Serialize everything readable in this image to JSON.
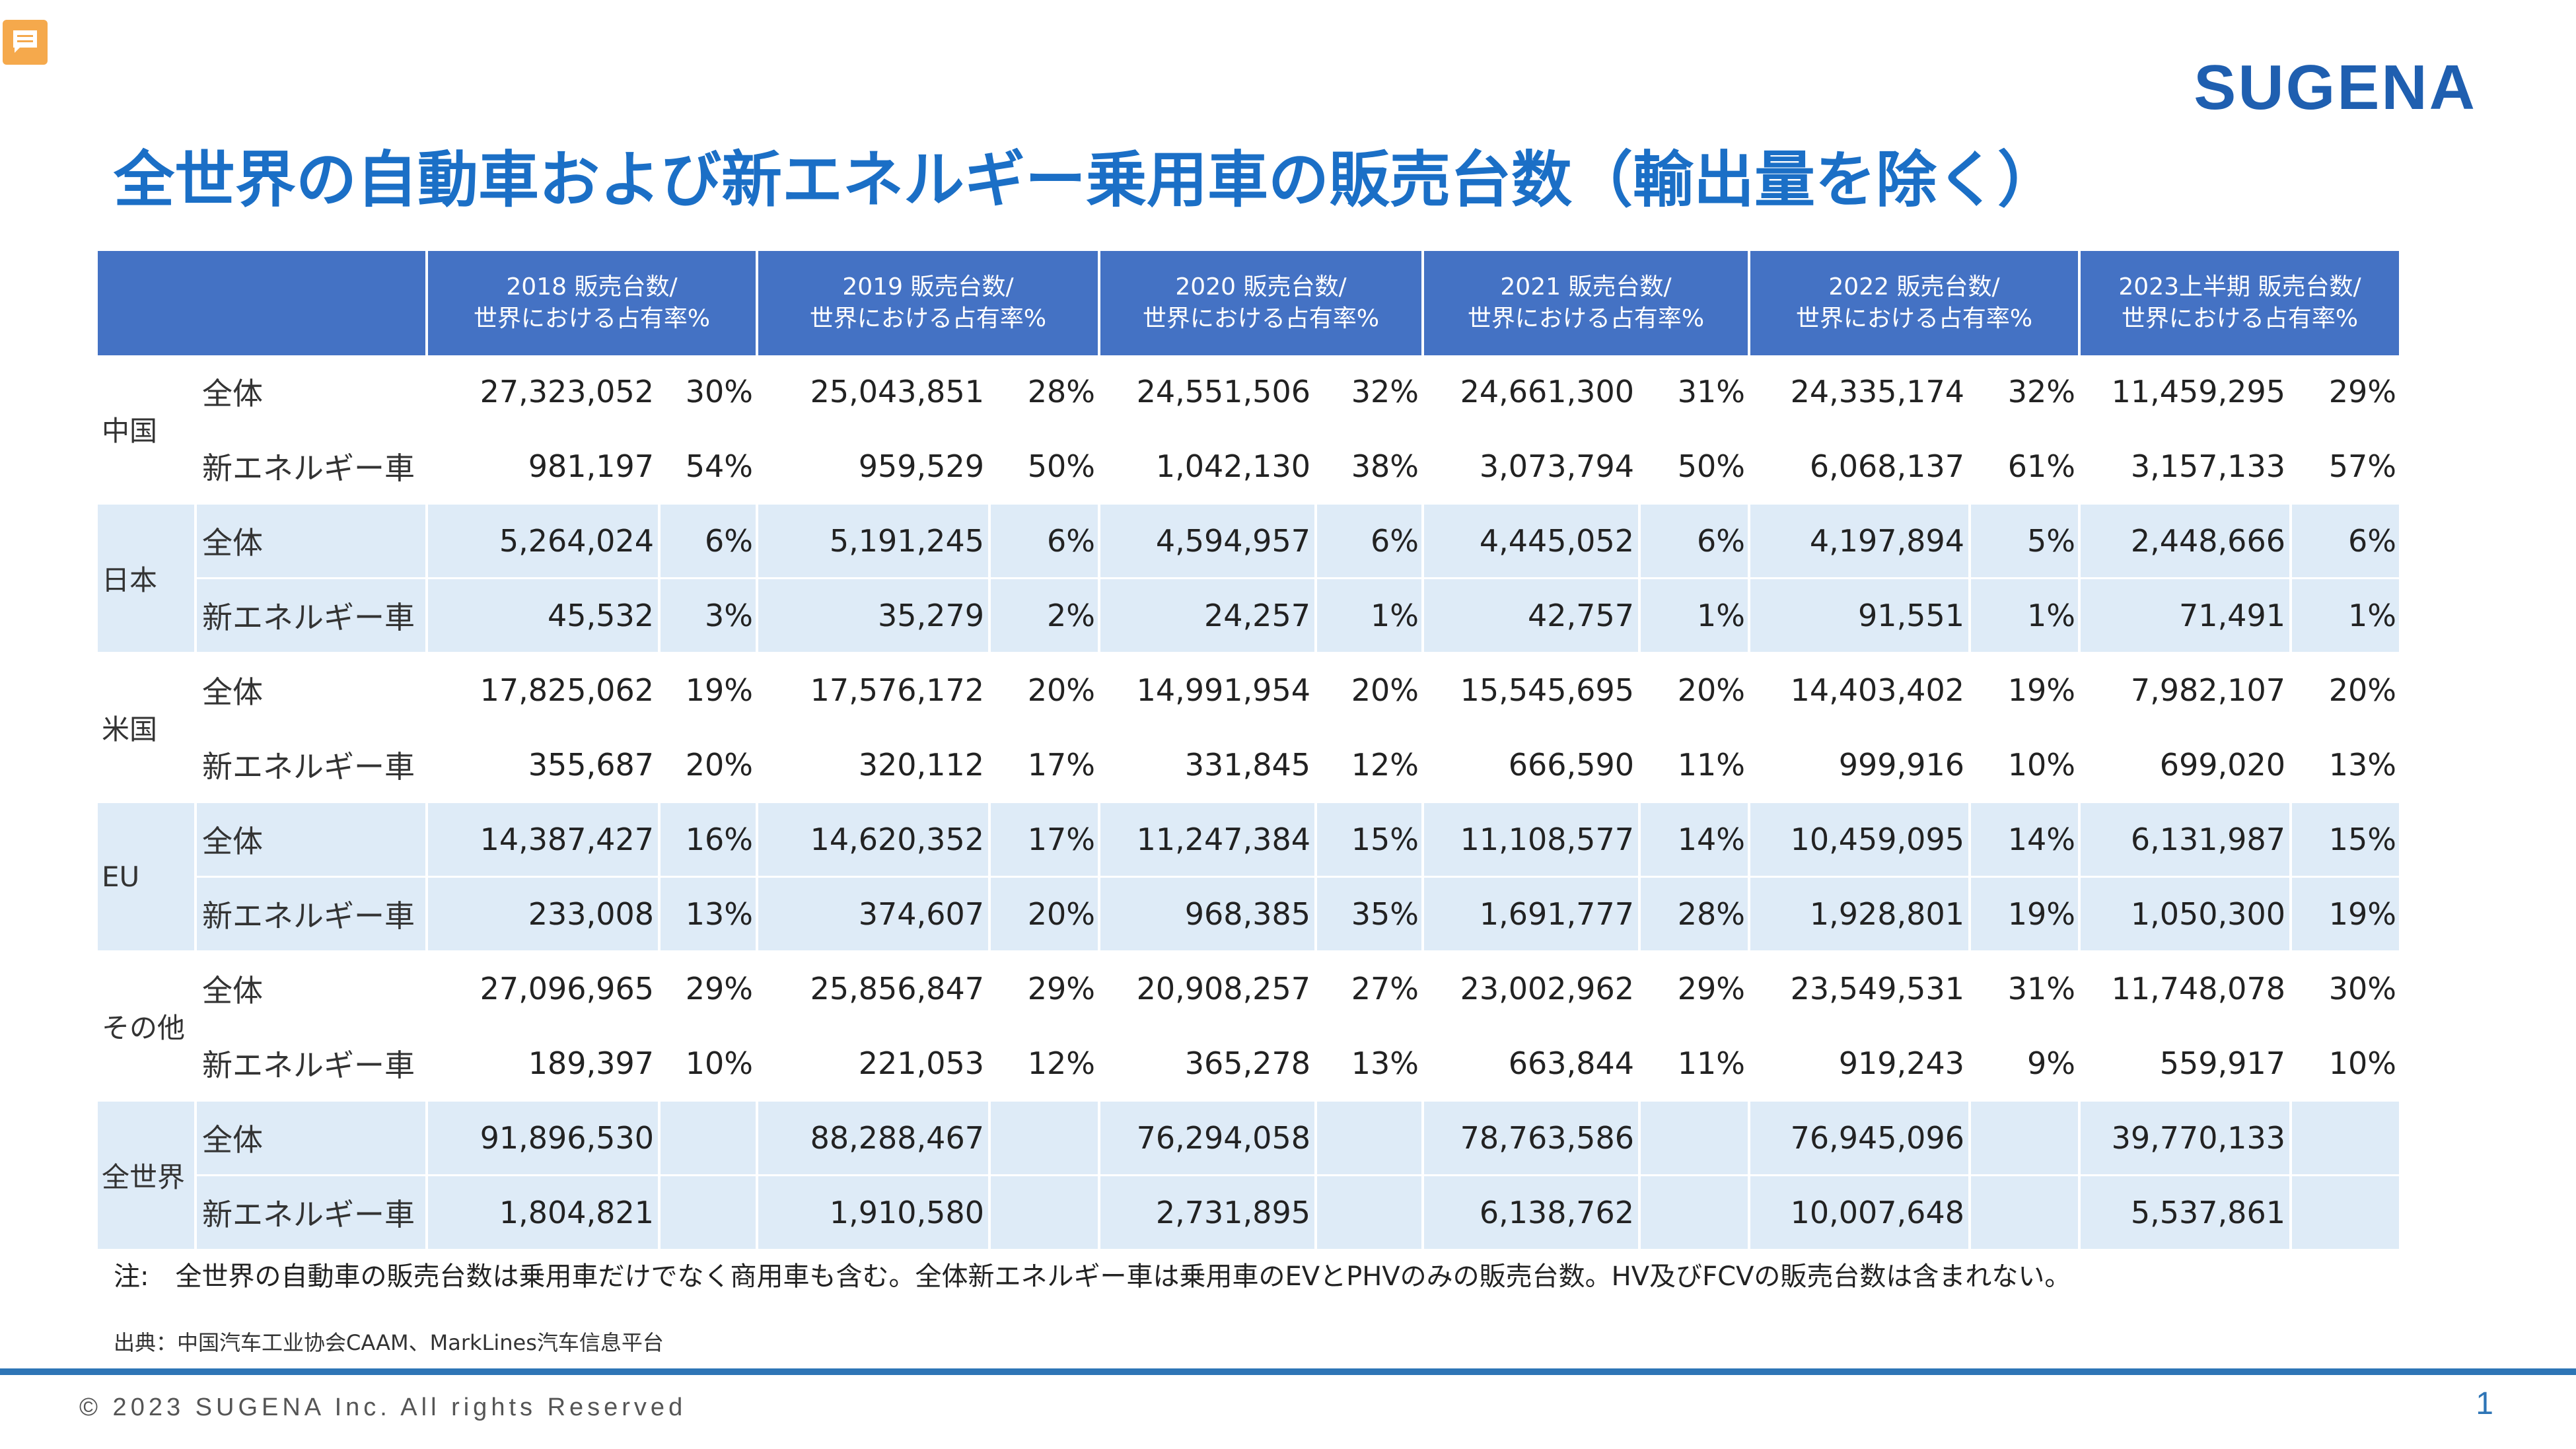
{
  "header": {
    "logo_text": "SUGENA",
    "title": "全世界の自動車および新エネルギー乗用車の販売台数（輸出量を除く）"
  },
  "table": {
    "columns": [
      {
        "line1": "2018 販売台数/",
        "line2": "世界における占有率%"
      },
      {
        "line1": "2019 販売台数/",
        "line2": "世界における占有率%"
      },
      {
        "line1": "2020 販売台数/",
        "line2": "世界における占有率%"
      },
      {
        "line1": "2021 販売台数/",
        "line2": "世界における占有率%"
      },
      {
        "line1": "2022 販売台数/",
        "line2": "世界における占有率%"
      },
      {
        "line1": "2023上半期 販売台数/",
        "line2": "世界における占有率%"
      }
    ],
    "regions": [
      {
        "name": "中国",
        "rows": [
          {
            "kind": "全体",
            "cells": [
              [
                "27,323,052",
                "30%"
              ],
              [
                "25,043,851",
                "28%"
              ],
              [
                "24,551,506",
                "32%"
              ],
              [
                "24,661,300",
                "31%"
              ],
              [
                "24,335,174",
                "32%"
              ],
              [
                "11,459,295",
                "29%"
              ]
            ]
          },
          {
            "kind": "新エネルギー車",
            "cells": [
              [
                "981,197",
                "54%"
              ],
              [
                "959,529",
                "50%"
              ],
              [
                "1,042,130",
                "38%"
              ],
              [
                "3,073,794",
                "50%"
              ],
              [
                "6,068,137",
                "61%"
              ],
              [
                "3,157,133",
                "57%"
              ]
            ]
          }
        ]
      },
      {
        "name": "日本",
        "rows": [
          {
            "kind": "全体",
            "cells": [
              [
                "5,264,024",
                "6%"
              ],
              [
                "5,191,245",
                "6%"
              ],
              [
                "4,594,957",
                "6%"
              ],
              [
                "4,445,052",
                "6%"
              ],
              [
                "4,197,894",
                "5%"
              ],
              [
                "2,448,666",
                "6%"
              ]
            ]
          },
          {
            "kind": "新エネルギー車",
            "cells": [
              [
                "45,532",
                "3%"
              ],
              [
                "35,279",
                "2%"
              ],
              [
                "24,257",
                "1%"
              ],
              [
                "42,757",
                "1%"
              ],
              [
                "91,551",
                "1%"
              ],
              [
                "71,491",
                "1%"
              ]
            ]
          }
        ]
      },
      {
        "name": "米国",
        "rows": [
          {
            "kind": "全体",
            "cells": [
              [
                "17,825,062",
                "19%"
              ],
              [
                "17,576,172",
                "20%"
              ],
              [
                "14,991,954",
                "20%"
              ],
              [
                "15,545,695",
                "20%"
              ],
              [
                "14,403,402",
                "19%"
              ],
              [
                "7,982,107",
                "20%"
              ]
            ]
          },
          {
            "kind": "新エネルギー車",
            "cells": [
              [
                "355,687",
                "20%"
              ],
              [
                "320,112",
                "17%"
              ],
              [
                "331,845",
                "12%"
              ],
              [
                "666,590",
                "11%"
              ],
              [
                "999,916",
                "10%"
              ],
              [
                "699,020",
                "13%"
              ]
            ]
          }
        ]
      },
      {
        "name": "EU",
        "rows": [
          {
            "kind": "全体",
            "cells": [
              [
                "14,387,427",
                "16%"
              ],
              [
                "14,620,352",
                "17%"
              ],
              [
                "11,247,384",
                "15%"
              ],
              [
                "11,108,577",
                "14%"
              ],
              [
                "10,459,095",
                "14%"
              ],
              [
                "6,131,987",
                "15%"
              ]
            ]
          },
          {
            "kind": "新エネルギー車",
            "cells": [
              [
                "233,008",
                "13%"
              ],
              [
                "374,607",
                "20%"
              ],
              [
                "968,385",
                "35%"
              ],
              [
                "1,691,777",
                "28%"
              ],
              [
                "1,928,801",
                "19%"
              ],
              [
                "1,050,300",
                "19%"
              ]
            ]
          }
        ]
      },
      {
        "name": "その他",
        "rows": [
          {
            "kind": "全体",
            "cells": [
              [
                "27,096,965",
                "29%"
              ],
              [
                "25,856,847",
                "29%"
              ],
              [
                "20,908,257",
                "27%"
              ],
              [
                "23,002,962",
                "29%"
              ],
              [
                "23,549,531",
                "31%"
              ],
              [
                "11,748,078",
                "30%"
              ]
            ]
          },
          {
            "kind": "新エネルギー車",
            "cells": [
              [
                "189,397",
                "10%"
              ],
              [
                "221,053",
                "12%"
              ],
              [
                "365,278",
                "13%"
              ],
              [
                "663,844",
                "11%"
              ],
              [
                "919,243",
                "9%"
              ],
              [
                "559,917",
                "10%"
              ]
            ]
          }
        ]
      },
      {
        "name": "全世界",
        "rows": [
          {
            "kind": "全体",
            "cells": [
              [
                "91,896,530",
                ""
              ],
              [
                "88,288,467",
                ""
              ],
              [
                "76,294,058",
                ""
              ],
              [
                "78,763,586",
                ""
              ],
              [
                "76,945,096",
                ""
              ],
              [
                "39,770,133",
                ""
              ]
            ]
          },
          {
            "kind": "新エネルギー車",
            "cells": [
              [
                "1,804,821",
                ""
              ],
              [
                "1,910,580",
                ""
              ],
              [
                "2,731,895",
                ""
              ],
              [
                "6,138,762",
                ""
              ],
              [
                "10,007,648",
                ""
              ],
              [
                "5,537,861",
                ""
              ]
            ]
          }
        ]
      }
    ]
  },
  "note": "注:　全世界の自動車の販売台数は乗用車だけでなく商用車も含む。全体新エネルギー車は乗用車のEVとPHVのみの販売台数。HV及びFCVの販売台数は含まれない。",
  "source": "出典：中国汽车工业协会CAAM、MarkLines汽车信息平台",
  "footer": {
    "copyright": "© 2023 SUGENA Inc. All rights Reserved",
    "page_number": "1"
  }
}
